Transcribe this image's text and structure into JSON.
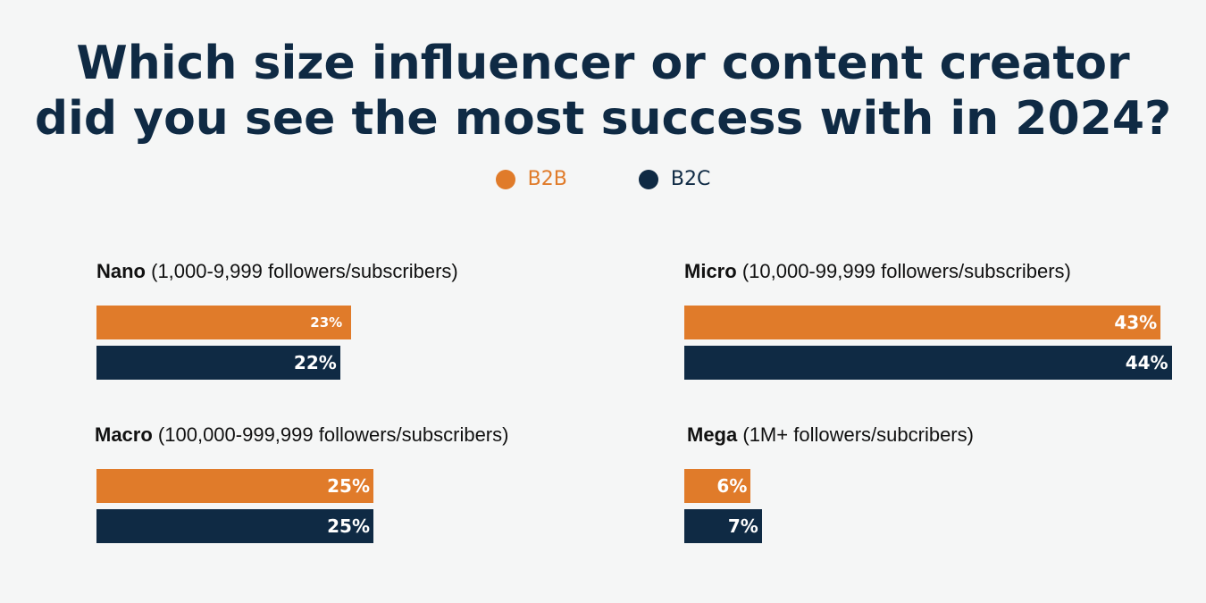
{
  "title": {
    "line1": "Which size influencer or content creator",
    "line2": "did you see the most success with in 2024?"
  },
  "colors": {
    "b2b": "#e07b2a",
    "b2c": "#0f2a44"
  },
  "legend": [
    {
      "label": "B2B",
      "color": "#e07b2a"
    },
    {
      "label": "B2C",
      "color": "#0f2a44"
    }
  ],
  "chart_data": {
    "type": "bar",
    "orientation": "horizontal",
    "title": "Which size influencer or content creator did you see the most success with in 2024?",
    "legend_position": "top-center",
    "grid": false,
    "series_names": [
      "B2B",
      "B2C"
    ],
    "groups": [
      {
        "name": "Nano",
        "desc": "(1,000-9,999 followers/subscribers)",
        "b2b": 23,
        "b2c": 22,
        "b2b_label": "23%",
        "b2c_label": "22%"
      },
      {
        "name": "Micro",
        "desc": "(10,000-99,999 followers/subscribers)",
        "b2b": 43,
        "b2c": 44,
        "b2b_label": "43%",
        "b2c_label": "44%"
      },
      {
        "name": "Macro",
        "desc": "(100,000-999,999 followers/subscribers)",
        "b2b": 25,
        "b2c": 25,
        "b2b_label": "25%",
        "b2c_label": "25%"
      },
      {
        "name": "Mega",
        "desc": "(1M+ followers/subcribers)",
        "b2b": 6,
        "b2c": 7,
        "b2b_label": "6%",
        "b2c_label": "7%"
      }
    ]
  }
}
